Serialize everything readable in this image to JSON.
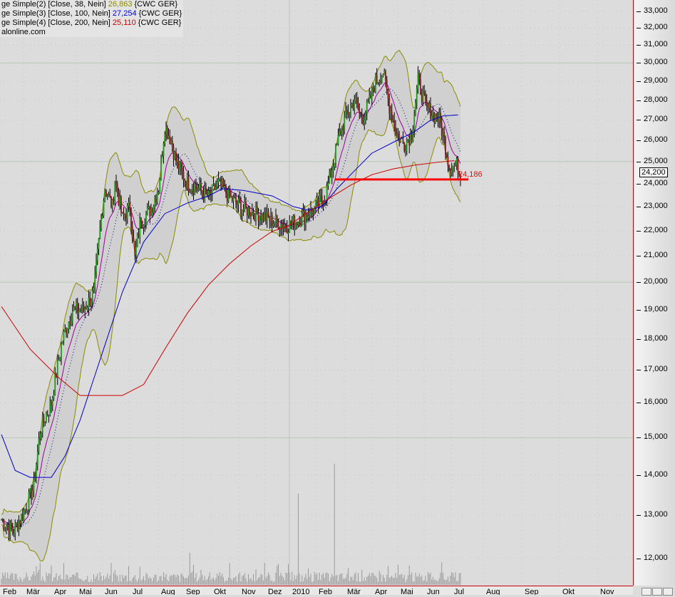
{
  "legend": [
    {
      "prefix": "ge Simple(2) [Close, 38, Nein] ",
      "value": "26,863",
      "suffix": " {CWC GER}",
      "color": "#8b8b00"
    },
    {
      "prefix": "ge Simple(3) [Close, 100, Nein] ",
      "value": "27,254",
      "suffix": " {CWC GER}",
      "color": "#0000cc"
    },
    {
      "prefix": "ge Simple(4) [Close, 200, Nein] ",
      "value": "25,110",
      "suffix": " {CWC GER}",
      "color": "#cc0000"
    },
    {
      "prefix": "alonline.com",
      "value": "",
      "suffix": "",
      "color": "#000"
    }
  ],
  "current_price": "24,200",
  "support_label": "24,186",
  "colors": {
    "up": "#1f9a1f",
    "down": "#8b1a1a",
    "ma38": "#8b8b00",
    "ma100": "#0000cc",
    "ma200": "#cc0000",
    "support": "#ff0000"
  },
  "chart_data": {
    "type": "candlestick",
    "scale": "log",
    "ylim": [
      11500,
      33500
    ],
    "y_ticks": [
      "12,000",
      "13,000",
      "14,000",
      "15,000",
      "16,000",
      "17,000",
      "18,000",
      "19,000",
      "20,000",
      "21,000",
      "22,000",
      "23,000",
      "24,000",
      "25,000",
      "26,000",
      "27,000",
      "28,000",
      "29,000",
      "30,000",
      "31,000",
      "32,000",
      "33,000"
    ],
    "x_ticks": [
      "Feb",
      "Mär",
      "Apr",
      "Mai",
      "Jun",
      "Jul",
      "Aug",
      "Sep",
      "Okt",
      "Nov",
      "Dez",
      "2010",
      "Feb",
      "Mär",
      "Apr",
      "Mai",
      "Jun",
      "Jul",
      "Aug",
      "Sep",
      "Okt",
      "Nov"
    ],
    "close_path": [
      [
        0,
        12900
      ],
      [
        9,
        12600
      ],
      [
        17,
        13000
      ],
      [
        26,
        13700
      ],
      [
        31,
        15200
      ],
      [
        40,
        16000
      ],
      [
        49,
        18000
      ],
      [
        57,
        19000
      ],
      [
        66,
        19000
      ],
      [
        74,
        19600
      ],
      [
        80,
        22500
      ],
      [
        83,
        23800
      ],
      [
        89,
        23000
      ],
      [
        91,
        24200
      ],
      [
        97,
        22500
      ],
      [
        103,
        23000
      ],
      [
        107,
        20900
      ],
      [
        111,
        22300
      ],
      [
        120,
        22900
      ],
      [
        126,
        23800
      ],
      [
        131,
        26700
      ],
      [
        136,
        26000
      ],
      [
        140,
        25000
      ],
      [
        149,
        24000
      ],
      [
        157,
        23800
      ],
      [
        166,
        23400
      ],
      [
        174,
        24000
      ],
      [
        183,
        23400
      ],
      [
        194,
        22900
      ],
      [
        206,
        22700
      ],
      [
        217,
        22400
      ],
      [
        229,
        22200
      ],
      [
        240,
        22500
      ],
      [
        251,
        22900
      ],
      [
        260,
        23500
      ],
      [
        266,
        24900
      ],
      [
        271,
        26300
      ],
      [
        277,
        27300
      ],
      [
        283,
        28000
      ],
      [
        289,
        27000
      ],
      [
        294,
        27700
      ],
      [
        300,
        29000
      ],
      [
        306,
        29500
      ],
      [
        311,
        27700
      ],
      [
        317,
        26300
      ],
      [
        323,
        25800
      ],
      [
        329,
        26300
      ],
      [
        334,
        29000
      ],
      [
        340,
        27700
      ],
      [
        346,
        27300
      ],
      [
        351,
        27000
      ],
      [
        355,
        26000
      ],
      [
        359,
        24800
      ],
      [
        366,
        24800
      ],
      [
        368,
        24200
      ]
    ],
    "ma100": [
      [
        0,
        15090
      ],
      [
        11,
        14120
      ],
      [
        23,
        13940
      ],
      [
        40,
        13940
      ],
      [
        51,
        14500
      ],
      [
        63,
        15490
      ],
      [
        80,
        17440
      ],
      [
        97,
        19640
      ],
      [
        114,
        21540
      ],
      [
        131,
        22700
      ],
      [
        149,
        23150
      ],
      [
        166,
        23460
      ],
      [
        177,
        23770
      ],
      [
        194,
        23700
      ],
      [
        217,
        23460
      ],
      [
        234,
        23000
      ],
      [
        246,
        22850
      ],
      [
        257,
        23000
      ],
      [
        269,
        23770
      ],
      [
        280,
        24400
      ],
      [
        297,
        25390
      ],
      [
        314,
        25900
      ],
      [
        331,
        26410
      ],
      [
        343,
        26940
      ],
      [
        354,
        27200
      ],
      [
        366,
        27250
      ]
    ],
    "ma200": [
      [
        0,
        19120
      ],
      [
        23,
        17670
      ],
      [
        46,
        16760
      ],
      [
        63,
        16220
      ],
      [
        80,
        16220
      ],
      [
        97,
        16220
      ],
      [
        114,
        16550
      ],
      [
        131,
        17670
      ],
      [
        149,
        18880
      ],
      [
        166,
        19900
      ],
      [
        183,
        20700
      ],
      [
        200,
        21390
      ],
      [
        217,
        21970
      ],
      [
        229,
        22170
      ],
      [
        246,
        22760
      ],
      [
        263,
        23360
      ],
      [
        280,
        23930
      ],
      [
        297,
        24400
      ],
      [
        314,
        24660
      ],
      [
        331,
        24830
      ],
      [
        349,
        24960
      ],
      [
        363,
        25040
      ]
    ],
    "support_level": 24186,
    "volume_spikes": [
      [
        151,
        "high"
      ],
      [
        238,
        "very high"
      ],
      [
        267,
        "very high"
      ]
    ]
  }
}
